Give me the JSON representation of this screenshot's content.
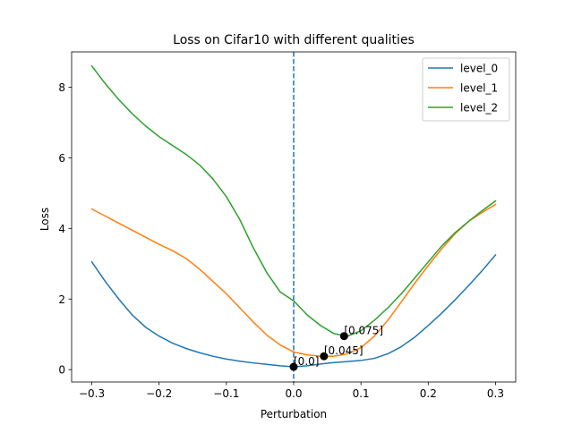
{
  "chart_data": {
    "type": "line",
    "title": "Loss on Cifar10 with different qualities",
    "xlabel": "Perturbation",
    "ylabel": "Loss",
    "xlim": [
      -0.33,
      0.33
    ],
    "ylim": [
      -0.35,
      9.0
    ],
    "xticks": [
      -0.3,
      -0.2,
      -0.1,
      0.0,
      0.1,
      0.2,
      0.3
    ],
    "xtick_labels": [
      "−0.3",
      "−0.2",
      "−0.1",
      "0.0",
      "0.1",
      "0.2",
      "0.3"
    ],
    "yticks": [
      0,
      2,
      4,
      6,
      8
    ],
    "ytick_labels": [
      "0",
      "2",
      "4",
      "6",
      "8"
    ],
    "grid": false,
    "legend_position": "top-right",
    "vline": {
      "x": 0.0,
      "style": "dashed",
      "color": "#1f77b4"
    },
    "series": [
      {
        "name": "level_0",
        "color": "#1f77b4",
        "x": [
          -0.3,
          -0.28,
          -0.26,
          -0.24,
          -0.22,
          -0.2,
          -0.18,
          -0.16,
          -0.14,
          -0.12,
          -0.1,
          -0.08,
          -0.06,
          -0.04,
          -0.02,
          0.0,
          0.02,
          0.04,
          0.06,
          0.08,
          0.1,
          0.12,
          0.14,
          0.16,
          0.18,
          0.2,
          0.22,
          0.24,
          0.26,
          0.28,
          0.3
        ],
        "values": [
          3.05,
          2.5,
          2.0,
          1.55,
          1.2,
          0.95,
          0.75,
          0.6,
          0.48,
          0.38,
          0.3,
          0.24,
          0.19,
          0.15,
          0.11,
          0.08,
          0.11,
          0.16,
          0.2,
          0.23,
          0.26,
          0.32,
          0.45,
          0.65,
          0.92,
          1.25,
          1.6,
          1.98,
          2.38,
          2.8,
          3.25
        ]
      },
      {
        "name": "level_1",
        "color": "#ff7f0e",
        "x": [
          -0.3,
          -0.28,
          -0.26,
          -0.24,
          -0.22,
          -0.2,
          -0.18,
          -0.16,
          -0.14,
          -0.12,
          -0.1,
          -0.08,
          -0.06,
          -0.04,
          -0.02,
          0.0,
          0.02,
          0.04,
          0.06,
          0.08,
          0.1,
          0.12,
          0.14,
          0.16,
          0.18,
          0.2,
          0.22,
          0.24,
          0.26,
          0.28,
          0.3
        ],
        "values": [
          4.55,
          4.35,
          4.15,
          3.95,
          3.75,
          3.55,
          3.37,
          3.15,
          2.85,
          2.5,
          2.15,
          1.75,
          1.35,
          0.98,
          0.7,
          0.5,
          0.42,
          0.38,
          0.38,
          0.45,
          0.62,
          0.95,
          1.4,
          1.92,
          2.45,
          2.95,
          3.42,
          3.85,
          4.2,
          4.45,
          4.68
        ]
      },
      {
        "name": "level_2",
        "color": "#2ca02c",
        "x": [
          -0.3,
          -0.28,
          -0.26,
          -0.24,
          -0.22,
          -0.2,
          -0.18,
          -0.16,
          -0.14,
          -0.12,
          -0.1,
          -0.08,
          -0.06,
          -0.04,
          -0.02,
          0.0,
          0.02,
          0.04,
          0.06,
          0.08,
          0.1,
          0.12,
          0.14,
          0.16,
          0.18,
          0.2,
          0.22,
          0.24,
          0.26,
          0.28,
          0.3
        ],
        "values": [
          8.6,
          8.1,
          7.65,
          7.25,
          6.9,
          6.6,
          6.35,
          6.1,
          5.8,
          5.4,
          4.9,
          4.25,
          3.45,
          2.75,
          2.2,
          1.95,
          1.55,
          1.25,
          1.02,
          0.95,
          1.1,
          1.4,
          1.75,
          2.15,
          2.6,
          3.05,
          3.5,
          3.88,
          4.2,
          4.5,
          4.78
        ]
      }
    ],
    "annotations": [
      {
        "x": 0.0,
        "y": 0.08,
        "label": "[0.0]"
      },
      {
        "x": 0.045,
        "y": 0.38,
        "label": "[0.045]"
      },
      {
        "x": 0.075,
        "y": 0.95,
        "label": "[0.075]"
      }
    ]
  }
}
